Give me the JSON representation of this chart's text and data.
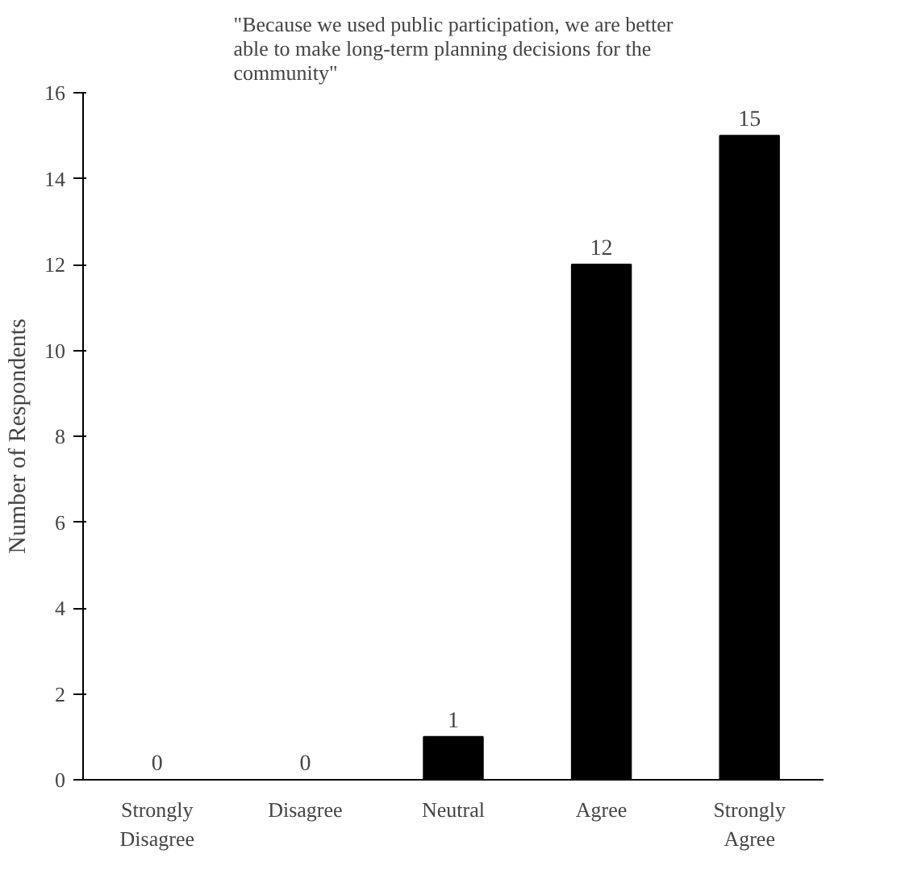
{
  "chart_data": {
    "type": "bar",
    "title": "\"Because we used public participation, we are better\nable to make long-term planning decisions for the\ncommunity\"",
    "ylabel": "Number of Respondents",
    "categories": [
      "Strongly\nDisagree",
      "Disagree",
      "Neutral",
      "Agree",
      "Strongly\nAgree"
    ],
    "values": [
      0,
      0,
      1,
      12,
      15
    ],
    "color": "#000000",
    "ylim": [
      0,
      16
    ],
    "yticks": [
      0,
      2,
      4,
      6,
      8,
      10,
      12,
      14,
      16
    ],
    "data_labels": true,
    "grid": false
  }
}
